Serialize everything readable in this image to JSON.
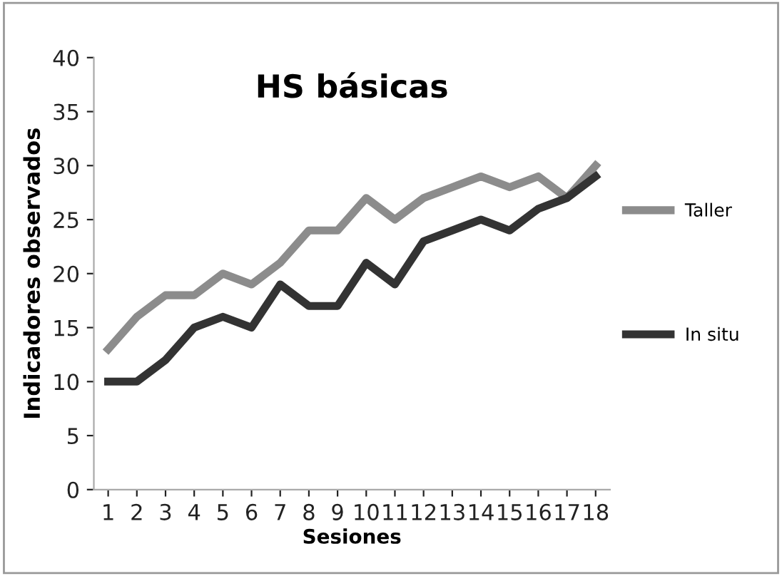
{
  "chart_data": {
    "type": "line",
    "title": "HS básicas",
    "xlabel": "Sesiones",
    "ylabel": "Indicadores observados",
    "categories": [
      "1",
      "2",
      "3",
      "4",
      "5",
      "6",
      "7",
      "8",
      "9",
      "10",
      "11",
      "12",
      "13",
      "14",
      "15",
      "16",
      "17",
      "18"
    ],
    "series": [
      {
        "name": "Taller",
        "color": "#8c8c8c",
        "values": [
          13,
          16,
          18,
          18,
          20,
          19,
          21,
          24,
          24,
          27,
          25,
          27,
          28,
          29,
          28,
          29,
          27,
          30
        ]
      },
      {
        "name": "In situ",
        "color": "#333333",
        "values": [
          10,
          10,
          12,
          15,
          16,
          15,
          19,
          17,
          17,
          21,
          19,
          23,
          24,
          25,
          24,
          26,
          27,
          29
        ]
      }
    ],
    "ylim": [
      0,
      40
    ],
    "yticks": [
      0,
      5,
      10,
      15,
      20,
      25,
      30,
      35,
      40
    ],
    "grid": false,
    "legend": "right",
    "marker": "none",
    "line_style": "solid"
  }
}
